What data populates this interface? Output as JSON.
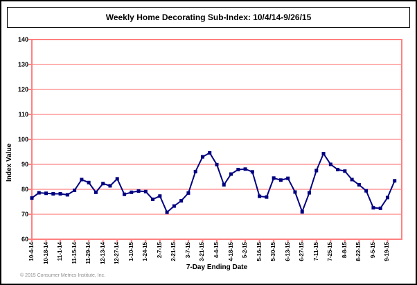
{
  "window": {
    "title": "Weekly Home Decorating Sub-Index: 10/4/14-9/26/15"
  },
  "chart_data": {
    "type": "line",
    "title": "Weekly Home Decorating Sub-Index: 10/4/14-9/26/15",
    "xlabel": "7-Day Ending Date",
    "ylabel": "Index Value",
    "ylim": [
      60,
      140
    ],
    "ytick_step": 10,
    "y_tick_labels": [
      "60",
      "70",
      "80",
      "90",
      "100",
      "110",
      "120",
      "130",
      "140"
    ],
    "grid": true,
    "gridline_color": "#ff9999",
    "frame_color": "#ff8080",
    "legend": "none",
    "label_every_n_points": 2,
    "x_tick_labels": [
      "10-4-14",
      "10-18-14",
      "11-1-14",
      "11-15-14",
      "11-29-14",
      "12-13-14",
      "12-27-14",
      "1-10-15",
      "1-24-15",
      "2-7-15",
      "2-21-15",
      "3-7-15",
      "3-21-15",
      "4-4-15",
      "4-18-15",
      "5-2-15",
      "5-16-15",
      "5-30-15",
      "6-13-15",
      "6-27-15",
      "7-11-15",
      "7-25-15",
      "8-8-15",
      "8-22-15",
      "9-5-15",
      "9-19-15"
    ],
    "series": [
      {
        "name": "Weekly Home Decorating Sub-Index",
        "color": "#000080",
        "marker": "square",
        "values": [
          76.5,
          78.6,
          78.4,
          78.2,
          78.2,
          77.8,
          79.6,
          83.9,
          82.7,
          78.8,
          82.3,
          81.4,
          84.2,
          78.0,
          78.8,
          79.3,
          79.1,
          76.0,
          77.3,
          70.8,
          73.3,
          75.4,
          78.5,
          87.1,
          93.0,
          94.6,
          89.9,
          81.8,
          86.1,
          87.9,
          88.1,
          87.0,
          77.2,
          76.9,
          84.5,
          83.7,
          84.4,
          78.9,
          71.0,
          78.6,
          87.5,
          94.3,
          90.0,
          87.9,
          87.3,
          83.9,
          81.8,
          79.4,
          72.6,
          72.4,
          76.7,
          83.4
        ]
      }
    ]
  },
  "footer": {
    "copyright": "© 2015 Consumer Metrics Institute, Inc."
  }
}
